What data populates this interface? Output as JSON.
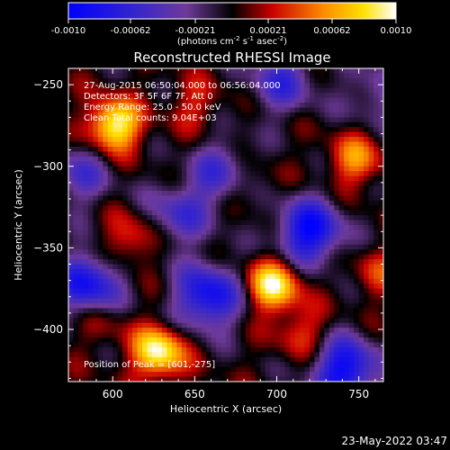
{
  "colorbar": {
    "ticks": [
      "-0.0010",
      "-0.00062",
      "-0.00021",
      "0.00021",
      "0.00062",
      "0.0010"
    ],
    "units_base": "(photons cm",
    "units_exp1": "-2",
    "units_mid": " s",
    "units_exp2": "-1",
    "units_mid2": " asec",
    "units_exp3": "-2",
    "units_end": ")"
  },
  "plot": {
    "title": "Reconstructed RHESSI Image",
    "info_lines": [
      "27-Aug-2015 06:50:04.000 to 06:56:04.000",
      "Detectors: 3F 5F 6F 7F, Att 0",
      "Energy Range: 25.0 - 50.0 keV",
      "Clean  Total counts: 9.04E+03"
    ],
    "position_of_peak": "Position of Peak = [601,-275]",
    "timestamp": "23-May-2022 03:47"
  },
  "chart_data": {
    "type": "heatmap",
    "title": "Reconstructed RHESSI Image",
    "xlabel": "Heliocentric X (arcsec)",
    "ylabel": "Heliocentric Y (arcsec)",
    "xlim": [
      573,
      765
    ],
    "ylim": [
      -432,
      -240
    ],
    "xticks": [
      600,
      650,
      700,
      750
    ],
    "yticks": [
      -250,
      -300,
      -350,
      -400
    ],
    "color_range": [
      -0.001,
      0.001
    ],
    "colormap": "blue-purple-black-red-yellow-white",
    "peak_position": [
      601,
      -275
    ],
    "sources": [
      {
        "x": 601,
        "y": -275,
        "amplitude": 1.0
      },
      {
        "x": 628,
        "y": -414,
        "amplitude": 0.98
      },
      {
        "x": 698,
        "y": -373,
        "amplitude": 0.93
      },
      {
        "x": 748,
        "y": -296,
        "amplitude": 0.55
      },
      {
        "x": 611,
        "y": -345,
        "amplitude": 0.42
      },
      {
        "x": 715,
        "y": -402,
        "amplitude": 0.35
      },
      {
        "x": 650,
        "y": -262,
        "amplitude": 0.28
      },
      {
        "x": 680,
        "y": -310,
        "amplitude": 0.32
      },
      {
        "x": 592,
        "y": -395,
        "amplitude": 0.25
      },
      {
        "x": 762,
        "y": -365,
        "amplitude": 0.3
      }
    ],
    "negatives": [
      {
        "x": 585,
        "y": -373,
        "amplitude": -0.85
      },
      {
        "x": 658,
        "y": -380,
        "amplitude": -0.9
      },
      {
        "x": 720,
        "y": -340,
        "amplitude": -0.95
      },
      {
        "x": 742,
        "y": -425,
        "amplitude": -0.95
      },
      {
        "x": 668,
        "y": -305,
        "amplitude": -0.6
      },
      {
        "x": 703,
        "y": -248,
        "amplitude": -0.55
      },
      {
        "x": 640,
        "y": -330,
        "amplitude": -0.5
      },
      {
        "x": 580,
        "y": -305,
        "amplitude": -0.45
      },
      {
        "x": 760,
        "y": -255,
        "amplitude": -0.35
      }
    ]
  }
}
